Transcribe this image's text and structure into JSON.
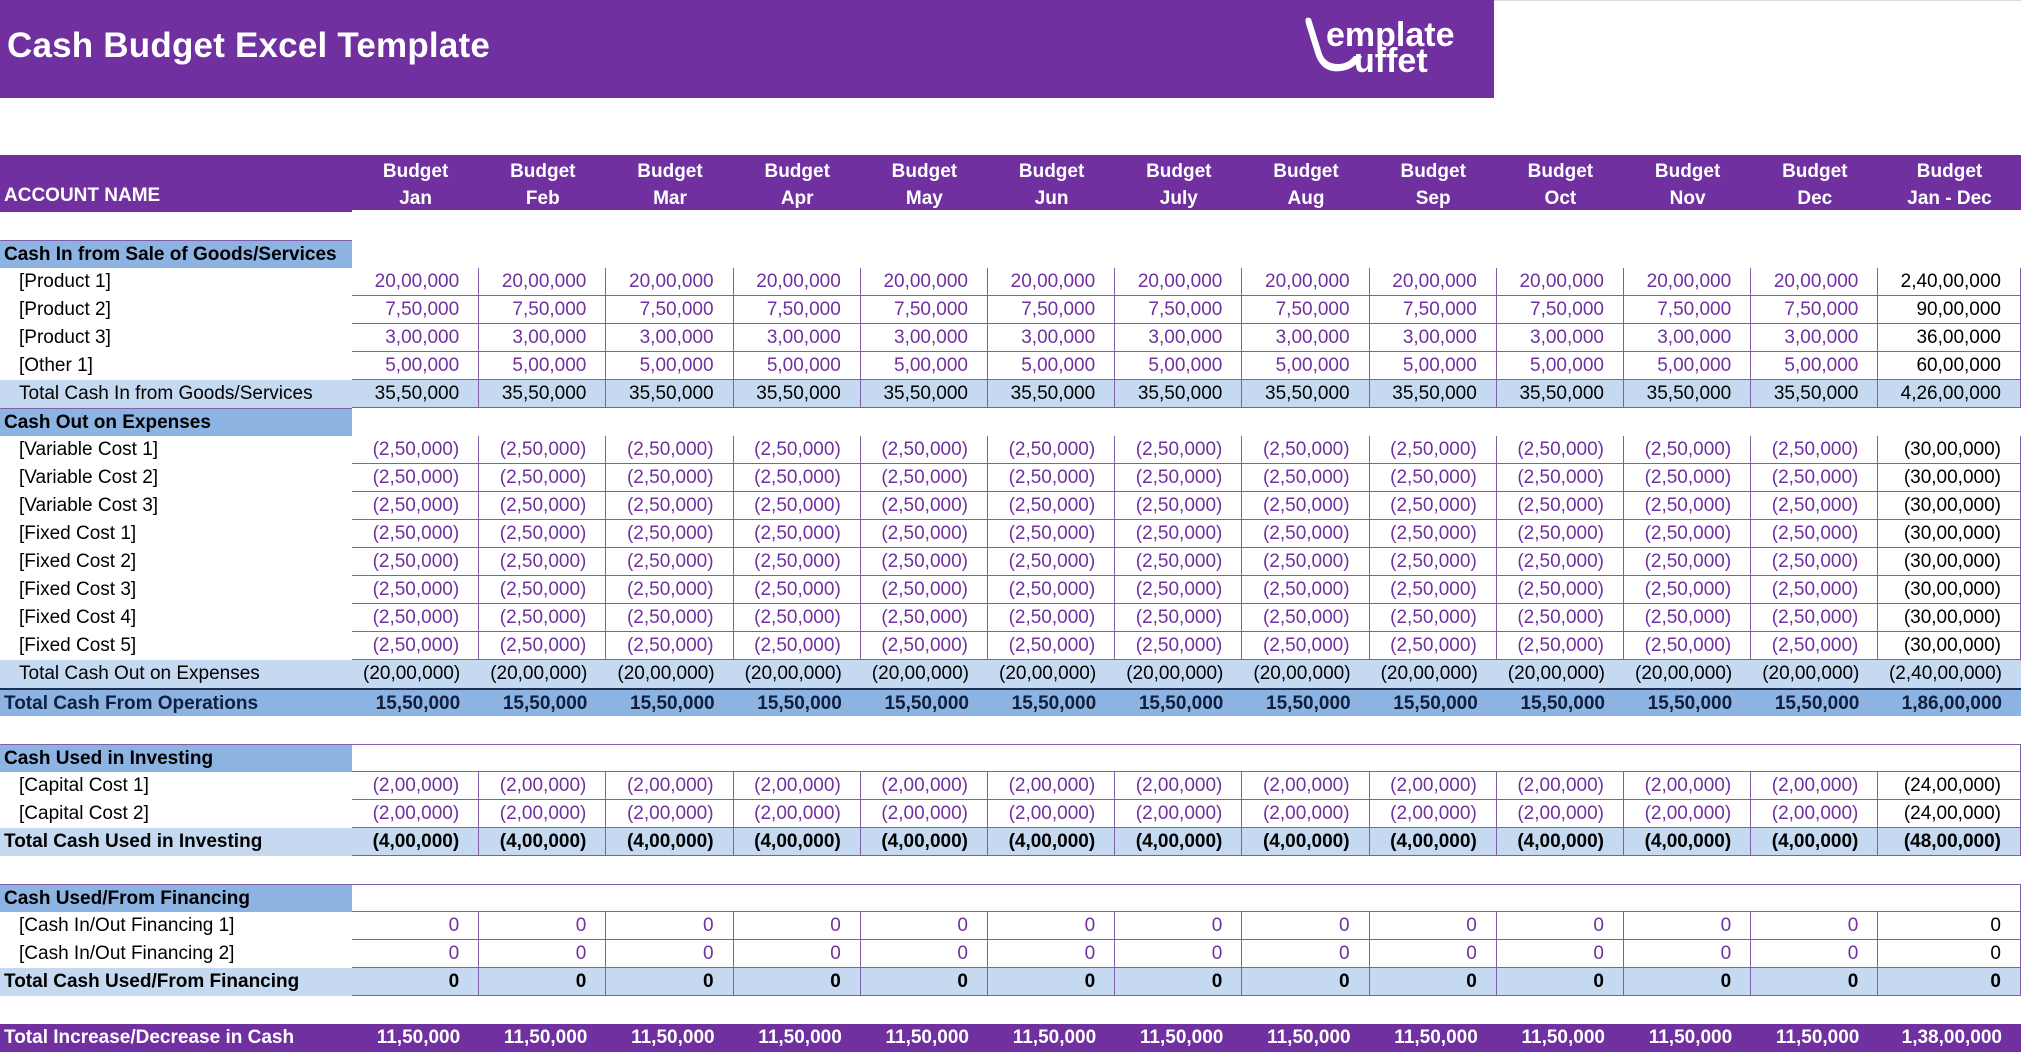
{
  "header": {
    "title": "Cash Budget Excel Template",
    "logo_line1": "emplate",
    "logo_line2": "uffet",
    "logo_icon": "ladle-icon"
  },
  "columns": {
    "account_label": "ACCOUNT NAME",
    "months": [
      {
        "top": "Budget",
        "bottom": "Jan"
      },
      {
        "top": "Budget",
        "bottom": "Feb"
      },
      {
        "top": "Budget",
        "bottom": "Mar"
      },
      {
        "top": "Budget",
        "bottom": "Apr"
      },
      {
        "top": "Budget",
        "bottom": "May"
      },
      {
        "top": "Budget",
        "bottom": "Jun"
      },
      {
        "top": "Budget",
        "bottom": "July"
      },
      {
        "top": "Budget",
        "bottom": "Aug"
      },
      {
        "top": "Budget",
        "bottom": "Sep"
      },
      {
        "top": "Budget",
        "bottom": "Oct"
      },
      {
        "top": "Budget",
        "bottom": "Nov"
      },
      {
        "top": "Budget",
        "bottom": "Dec"
      },
      {
        "top": "Budget",
        "bottom": "Jan - Dec"
      }
    ]
  },
  "sections": {
    "cash_in": {
      "title": "Cash In from Sale of Goods/Services",
      "rows": [
        {
          "label": "[Product 1]",
          "monthly": "20,00,000",
          "total": "2,40,00,000"
        },
        {
          "label": "[Product 2]",
          "monthly": "7,50,000",
          "total": "90,00,000"
        },
        {
          "label": "[Product 3]",
          "monthly": "3,00,000",
          "total": "36,00,000"
        },
        {
          "label": "[Other 1]",
          "monthly": "5,00,000",
          "total": "60,00,000"
        }
      ],
      "total": {
        "label": "Total Cash In from Goods/Services",
        "monthly": "35,50,000",
        "total": "4,26,00,000"
      }
    },
    "cash_out": {
      "title": "Cash Out on Expenses",
      "rows": [
        {
          "label": "[Variable Cost 1]",
          "monthly": "(2,50,000)",
          "total": "(30,00,000)"
        },
        {
          "label": "[Variable Cost 2]",
          "monthly": "(2,50,000)",
          "total": "(30,00,000)"
        },
        {
          "label": "[Variable Cost 3]",
          "monthly": "(2,50,000)",
          "total": "(30,00,000)"
        },
        {
          "label": "[Fixed Cost 1]",
          "monthly": "(2,50,000)",
          "total": "(30,00,000)"
        },
        {
          "label": "[Fixed Cost 2]",
          "monthly": "(2,50,000)",
          "total": "(30,00,000)"
        },
        {
          "label": "[Fixed Cost 3]",
          "monthly": "(2,50,000)",
          "total": "(30,00,000)"
        },
        {
          "label": "[Fixed Cost 4]",
          "monthly": "(2,50,000)",
          "total": "(30,00,000)"
        },
        {
          "label": "[Fixed Cost 5]",
          "monthly": "(2,50,000)",
          "total": "(30,00,000)"
        }
      ],
      "total": {
        "label": "Total Cash Out on Expenses",
        "monthly": "(20,00,000)",
        "total": "(2,40,00,000)"
      }
    },
    "operations_total": {
      "label": "Total Cash From Operations",
      "monthly": "15,50,000",
      "total": "1,86,00,000"
    },
    "investing": {
      "title": "Cash Used in Investing",
      "rows": [
        {
          "label": "[Capital Cost 1]",
          "monthly": "(2,00,000)",
          "total": "(24,00,000)"
        },
        {
          "label": "[Capital Cost 2]",
          "monthly": "(2,00,000)",
          "total": "(24,00,000)"
        }
      ],
      "total": {
        "label": "Total Cash Used in Investing",
        "monthly": "(4,00,000)",
        "total": "(48,00,000)"
      }
    },
    "financing": {
      "title": "Cash Used/From Financing",
      "rows": [
        {
          "label": "[Cash In/Out Financing 1]",
          "monthly": "0",
          "total": "0"
        },
        {
          "label": "[Cash In/Out Financing 2]",
          "monthly": "0",
          "total": "0"
        }
      ],
      "total": {
        "label": "Total Cash Used/From Financing",
        "monthly": "0",
        "total": "0"
      }
    },
    "grand_total": {
      "label": "Total Increase/Decrease in Cash",
      "monthly": "11,50,000",
      "total": "1,38,00,000"
    }
  },
  "colors": {
    "brand_purple": "#7030a0",
    "section_blue": "#8db3e2",
    "subtotal_blue": "#c5d9f1",
    "input_text_purple": "#7030a0"
  }
}
